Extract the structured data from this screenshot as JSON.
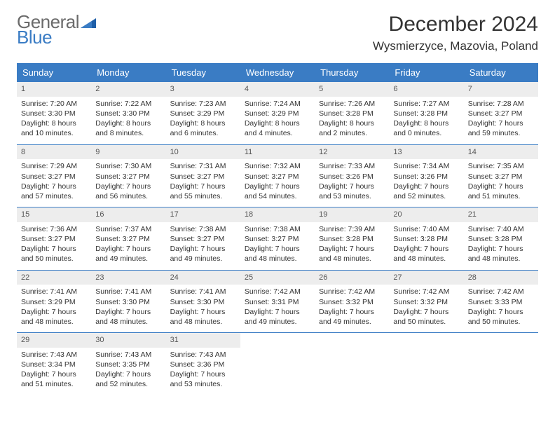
{
  "logo": {
    "text1": "General",
    "text2": "Blue"
  },
  "title": "December 2024",
  "location": "Wysmierzyce, Mazovia, Poland",
  "colors": {
    "header_bg": "#3a7cc4",
    "header_text": "#ffffff",
    "daynum_bg": "#ededed",
    "body_text": "#333333",
    "logo_gray": "#6b6b6b",
    "logo_blue": "#3a7cc4",
    "rule": "#3a7cc4"
  },
  "weekdays": [
    "Sunday",
    "Monday",
    "Tuesday",
    "Wednesday",
    "Thursday",
    "Friday",
    "Saturday"
  ],
  "weeks": [
    [
      {
        "n": "1",
        "sunrise": "Sunrise: 7:20 AM",
        "sunset": "Sunset: 3:30 PM",
        "day": "Daylight: 8 hours and 10 minutes."
      },
      {
        "n": "2",
        "sunrise": "Sunrise: 7:22 AM",
        "sunset": "Sunset: 3:30 PM",
        "day": "Daylight: 8 hours and 8 minutes."
      },
      {
        "n": "3",
        "sunrise": "Sunrise: 7:23 AM",
        "sunset": "Sunset: 3:29 PM",
        "day": "Daylight: 8 hours and 6 minutes."
      },
      {
        "n": "4",
        "sunrise": "Sunrise: 7:24 AM",
        "sunset": "Sunset: 3:29 PM",
        "day": "Daylight: 8 hours and 4 minutes."
      },
      {
        "n": "5",
        "sunrise": "Sunrise: 7:26 AM",
        "sunset": "Sunset: 3:28 PM",
        "day": "Daylight: 8 hours and 2 minutes."
      },
      {
        "n": "6",
        "sunrise": "Sunrise: 7:27 AM",
        "sunset": "Sunset: 3:28 PM",
        "day": "Daylight: 8 hours and 0 minutes."
      },
      {
        "n": "7",
        "sunrise": "Sunrise: 7:28 AM",
        "sunset": "Sunset: 3:27 PM",
        "day": "Daylight: 7 hours and 59 minutes."
      }
    ],
    [
      {
        "n": "8",
        "sunrise": "Sunrise: 7:29 AM",
        "sunset": "Sunset: 3:27 PM",
        "day": "Daylight: 7 hours and 57 minutes."
      },
      {
        "n": "9",
        "sunrise": "Sunrise: 7:30 AM",
        "sunset": "Sunset: 3:27 PM",
        "day": "Daylight: 7 hours and 56 minutes."
      },
      {
        "n": "10",
        "sunrise": "Sunrise: 7:31 AM",
        "sunset": "Sunset: 3:27 PM",
        "day": "Daylight: 7 hours and 55 minutes."
      },
      {
        "n": "11",
        "sunrise": "Sunrise: 7:32 AM",
        "sunset": "Sunset: 3:27 PM",
        "day": "Daylight: 7 hours and 54 minutes."
      },
      {
        "n": "12",
        "sunrise": "Sunrise: 7:33 AM",
        "sunset": "Sunset: 3:26 PM",
        "day": "Daylight: 7 hours and 53 minutes."
      },
      {
        "n": "13",
        "sunrise": "Sunrise: 7:34 AM",
        "sunset": "Sunset: 3:26 PM",
        "day": "Daylight: 7 hours and 52 minutes."
      },
      {
        "n": "14",
        "sunrise": "Sunrise: 7:35 AM",
        "sunset": "Sunset: 3:27 PM",
        "day": "Daylight: 7 hours and 51 minutes."
      }
    ],
    [
      {
        "n": "15",
        "sunrise": "Sunrise: 7:36 AM",
        "sunset": "Sunset: 3:27 PM",
        "day": "Daylight: 7 hours and 50 minutes."
      },
      {
        "n": "16",
        "sunrise": "Sunrise: 7:37 AM",
        "sunset": "Sunset: 3:27 PM",
        "day": "Daylight: 7 hours and 49 minutes."
      },
      {
        "n": "17",
        "sunrise": "Sunrise: 7:38 AM",
        "sunset": "Sunset: 3:27 PM",
        "day": "Daylight: 7 hours and 49 minutes."
      },
      {
        "n": "18",
        "sunrise": "Sunrise: 7:38 AM",
        "sunset": "Sunset: 3:27 PM",
        "day": "Daylight: 7 hours and 48 minutes."
      },
      {
        "n": "19",
        "sunrise": "Sunrise: 7:39 AM",
        "sunset": "Sunset: 3:28 PM",
        "day": "Daylight: 7 hours and 48 minutes."
      },
      {
        "n": "20",
        "sunrise": "Sunrise: 7:40 AM",
        "sunset": "Sunset: 3:28 PM",
        "day": "Daylight: 7 hours and 48 minutes."
      },
      {
        "n": "21",
        "sunrise": "Sunrise: 7:40 AM",
        "sunset": "Sunset: 3:28 PM",
        "day": "Daylight: 7 hours and 48 minutes."
      }
    ],
    [
      {
        "n": "22",
        "sunrise": "Sunrise: 7:41 AM",
        "sunset": "Sunset: 3:29 PM",
        "day": "Daylight: 7 hours and 48 minutes."
      },
      {
        "n": "23",
        "sunrise": "Sunrise: 7:41 AM",
        "sunset": "Sunset: 3:30 PM",
        "day": "Daylight: 7 hours and 48 minutes."
      },
      {
        "n": "24",
        "sunrise": "Sunrise: 7:41 AM",
        "sunset": "Sunset: 3:30 PM",
        "day": "Daylight: 7 hours and 48 minutes."
      },
      {
        "n": "25",
        "sunrise": "Sunrise: 7:42 AM",
        "sunset": "Sunset: 3:31 PM",
        "day": "Daylight: 7 hours and 49 minutes."
      },
      {
        "n": "26",
        "sunrise": "Sunrise: 7:42 AM",
        "sunset": "Sunset: 3:32 PM",
        "day": "Daylight: 7 hours and 49 minutes."
      },
      {
        "n": "27",
        "sunrise": "Sunrise: 7:42 AM",
        "sunset": "Sunset: 3:32 PM",
        "day": "Daylight: 7 hours and 50 minutes."
      },
      {
        "n": "28",
        "sunrise": "Sunrise: 7:42 AM",
        "sunset": "Sunset: 3:33 PM",
        "day": "Daylight: 7 hours and 50 minutes."
      }
    ],
    [
      {
        "n": "29",
        "sunrise": "Sunrise: 7:43 AM",
        "sunset": "Sunset: 3:34 PM",
        "day": "Daylight: 7 hours and 51 minutes."
      },
      {
        "n": "30",
        "sunrise": "Sunrise: 7:43 AM",
        "sunset": "Sunset: 3:35 PM",
        "day": "Daylight: 7 hours and 52 minutes."
      },
      {
        "n": "31",
        "sunrise": "Sunrise: 7:43 AM",
        "sunset": "Sunset: 3:36 PM",
        "day": "Daylight: 7 hours and 53 minutes."
      },
      null,
      null,
      null,
      null
    ]
  ]
}
